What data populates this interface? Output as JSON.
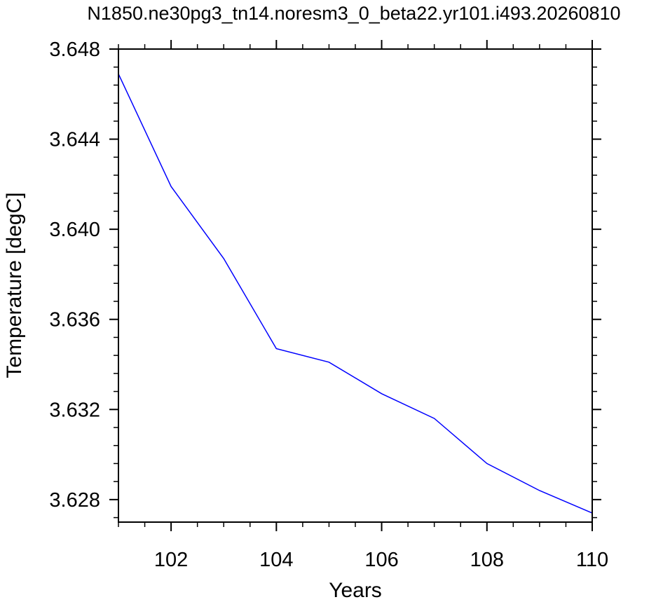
{
  "chart_data": {
    "type": "line",
    "title": "N1850.ne30pg3_tn14.noresm3_0_beta22.yr101.i493.20260810",
    "xlabel": "Years",
    "ylabel": "Temperature [degC]",
    "xlim": [
      101,
      110
    ],
    "ylim": [
      3.627,
      3.648
    ],
    "x_ticks": [
      102,
      104,
      106,
      108,
      110
    ],
    "x_tick_labels": [
      "102",
      "104",
      "106",
      "108",
      "110"
    ],
    "y_ticks": [
      3.628,
      3.632,
      3.636,
      3.64,
      3.644,
      3.648
    ],
    "y_tick_labels": [
      "3.628",
      "3.632",
      "3.636",
      "3.640",
      "3.644",
      "3.648"
    ],
    "grid": false,
    "series": [
      {
        "color": "#0000ff",
        "x": [
          101,
          102,
          103,
          104,
          105,
          106,
          107,
          108,
          109,
          110
        ],
        "y": [
          3.6469,
          3.6419,
          3.6387,
          3.6347,
          3.6341,
          3.6327,
          3.6316,
          3.6296,
          3.6284,
          3.6274
        ]
      }
    ]
  }
}
